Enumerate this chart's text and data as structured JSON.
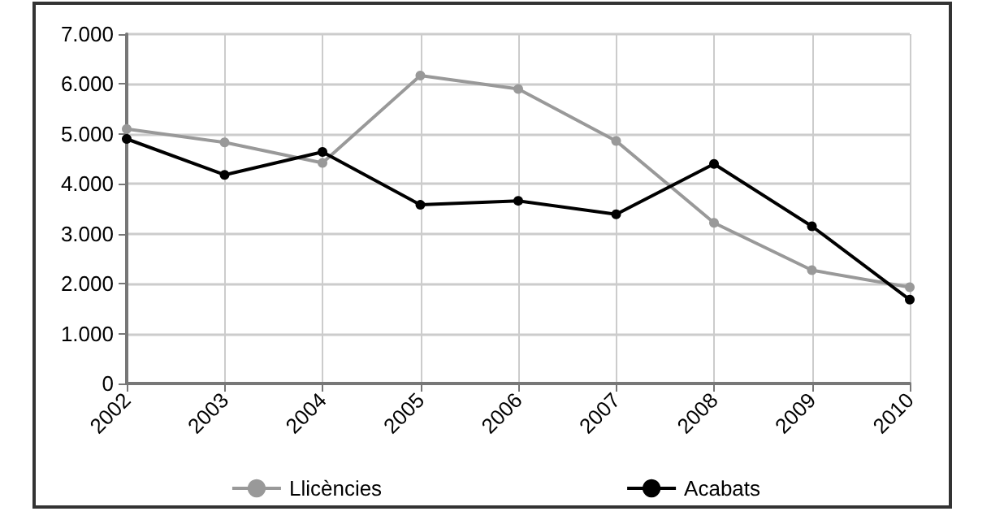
{
  "chart_data": {
    "type": "line",
    "categories": [
      "2002",
      "2003",
      "2004",
      "2005",
      "2006",
      "2007",
      "2008",
      "2009",
      "2010"
    ],
    "series": [
      {
        "name": "Llicències",
        "color": "#999999",
        "values": [
          5100,
          4830,
          4420,
          6170,
          5900,
          4860,
          3220,
          2270,
          1930
        ]
      },
      {
        "name": "Acabats",
        "color": "#000000",
        "values": [
          4900,
          4180,
          4640,
          3580,
          3660,
          3390,
          4400,
          3150,
          1680
        ]
      }
    ],
    "ylim": [
      0,
      7000
    ],
    "yticks": [
      0,
      {
        "value": 1000,
        "label": "1.000"
      },
      {
        "value": 2000,
        "label": "2.000"
      },
      {
        "value": 3000,
        "label": "3.000"
      },
      {
        "value": 4000,
        "label": "4.000"
      },
      {
        "value": 5000,
        "label": "5.000"
      },
      {
        "value": 6000,
        "label": "6.000"
      },
      {
        "value": 7000,
        "label": "7.000"
      }
    ],
    "grid": true,
    "legend": "bottom",
    "marker": "circle",
    "line_style": "solid"
  }
}
